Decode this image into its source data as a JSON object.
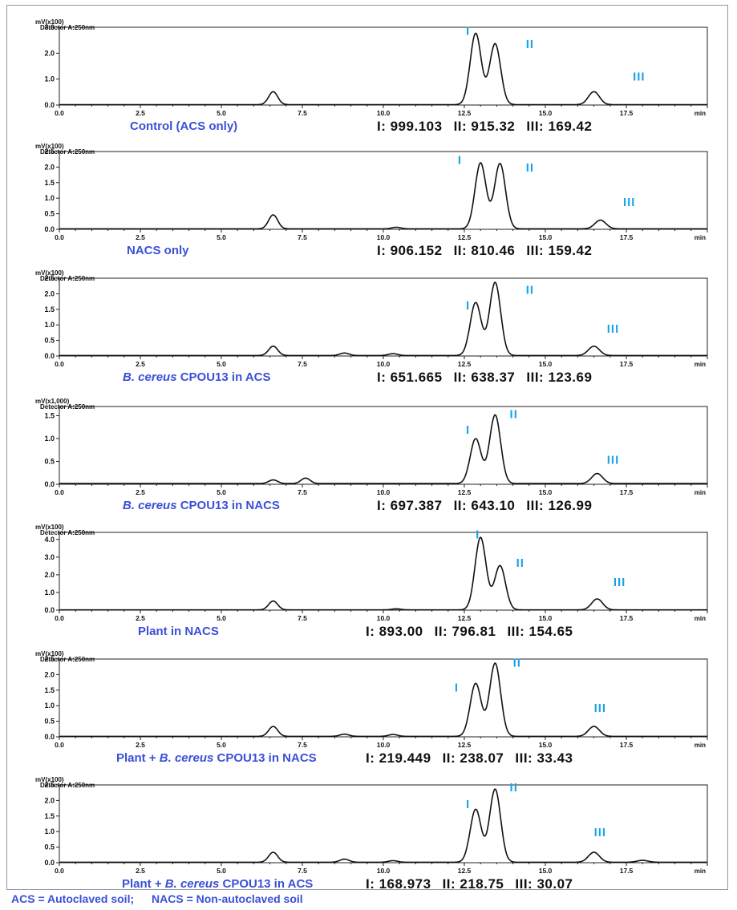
{
  "chart_data": [
    {
      "type": "line",
      "header_unit": "mV(x100)",
      "header_detector": "Detector A:250nm",
      "xlim": [
        0,
        20
      ],
      "ylim": [
        0,
        3.0
      ],
      "x_ticks": [
        "0.0",
        "2.5",
        "5.0",
        "7.5",
        "10.0",
        "12.5",
        "15.0",
        "17.5"
      ],
      "x_unit": "min",
      "y_ticks": [
        "0.0",
        "1.0",
        "2.0",
        "3.0"
      ],
      "caption": {
        "pre": "",
        "italic": "",
        "post": "Control (ACS only)"
      },
      "peaks": [
        {
          "t": 6.6,
          "h": 0.5
        },
        {
          "t": 12.85,
          "h": 2.75
        },
        {
          "t": 13.45,
          "h": 2.35
        },
        {
          "t": 16.5,
          "h": 0.5
        }
      ],
      "peak_labels": [
        {
          "label": "I",
          "x": 12.55,
          "y": 2.7
        },
        {
          "label": "II",
          "x": 14.4,
          "y": 2.2
        },
        {
          "label": "III",
          "x": 17.7,
          "y": 0.95
        }
      ],
      "areas": {
        "I": "I: 999.103",
        "II": "II: 915.32",
        "III": "III: 169.42"
      }
    },
    {
      "type": "line",
      "header_unit": "mV(x100)",
      "header_detector": "Detector A:250nm",
      "xlim": [
        0,
        20
      ],
      "ylim": [
        0,
        2.5
      ],
      "x_ticks": [
        "0.0",
        "2.5",
        "5.0",
        "7.5",
        "10.0",
        "12.5",
        "15.0",
        "17.5"
      ],
      "x_unit": "min",
      "y_ticks": [
        "0.0",
        "0.5",
        "1.0",
        "1.5",
        "2.0",
        "2.5"
      ],
      "caption": {
        "pre": "",
        "italic": "",
        "post": "NACS only"
      },
      "peaks": [
        {
          "t": 6.6,
          "h": 0.45
        },
        {
          "t": 10.4,
          "h": 0.05
        },
        {
          "t": 13.0,
          "h": 2.12
        },
        {
          "t": 13.6,
          "h": 2.1
        },
        {
          "t": 16.7,
          "h": 0.28
        }
      ],
      "peak_labels": [
        {
          "label": "I",
          "x": 12.3,
          "y": 2.1
        },
        {
          "label": "II",
          "x": 14.4,
          "y": 1.85
        },
        {
          "label": "III",
          "x": 17.4,
          "y": 0.75
        }
      ],
      "areas": {
        "I": "I: 906.152",
        "II": "II: 810.46",
        "III": "III: 159.42"
      }
    },
    {
      "type": "line",
      "header_unit": "mV(x100)",
      "header_detector": "Detector A:250nm",
      "xlim": [
        0,
        20
      ],
      "ylim": [
        0,
        2.5
      ],
      "x_ticks": [
        "0.0",
        "2.5",
        "5.0",
        "7.5",
        "10.0",
        "12.5",
        "15.0",
        "17.5"
      ],
      "x_unit": "min",
      "y_ticks": [
        "0.0",
        "0.5",
        "1.0",
        "1.5",
        "2.0",
        "2.5"
      ],
      "caption": {
        "pre": "",
        "italic": "B. cereus",
        "post": " CPOU13 in ACS"
      },
      "peaks": [
        {
          "t": 6.6,
          "h": 0.3
        },
        {
          "t": 8.8,
          "h": 0.08
        },
        {
          "t": 10.3,
          "h": 0.06
        },
        {
          "t": 12.85,
          "h": 1.7
        },
        {
          "t": 13.45,
          "h": 2.35
        },
        {
          "t": 16.5,
          "h": 0.3
        }
      ],
      "peak_labels": [
        {
          "label": "I",
          "x": 12.55,
          "y": 1.5
        },
        {
          "label": "II",
          "x": 14.4,
          "y": 2.0
        },
        {
          "label": "III",
          "x": 16.9,
          "y": 0.75
        }
      ],
      "areas": {
        "I": "I: 651.665",
        "II": "II: 638.37",
        "III": "III: 123.69"
      }
    },
    {
      "type": "line",
      "header_unit": "mV(x1,000)",
      "header_detector": "Detector A:250nm",
      "xlim": [
        0,
        20
      ],
      "ylim": [
        0,
        1.7
      ],
      "x_ticks": [
        "0.0",
        "2.5",
        "5.0",
        "7.5",
        "10.0",
        "12.5",
        "15.0",
        "17.5"
      ],
      "x_unit": "min",
      "y_ticks": [
        "0.0",
        "0.5",
        "1.0",
        "1.5"
      ],
      "caption": {
        "pre": "",
        "italic": "B. cereus",
        "post": " CPOU13 in NACS"
      },
      "peaks": [
        {
          "t": 6.6,
          "h": 0.08
        },
        {
          "t": 7.6,
          "h": 0.12
        },
        {
          "t": 12.85,
          "h": 0.98
        },
        {
          "t": 13.45,
          "h": 1.5
        },
        {
          "t": 16.6,
          "h": 0.22
        }
      ],
      "peak_labels": [
        {
          "label": "I",
          "x": 12.55,
          "y": 1.1
        },
        {
          "label": "II",
          "x": 13.9,
          "y": 1.45
        },
        {
          "label": "III",
          "x": 16.9,
          "y": 0.45
        }
      ],
      "areas": {
        "I": "I: 697.387",
        "II": "II: 643.10",
        "III": "III: 126.99"
      }
    },
    {
      "type": "line",
      "header_unit": "mV(x100)",
      "header_detector": "Detector A:250nm",
      "xlim": [
        0,
        20
      ],
      "ylim": [
        0,
        4.4
      ],
      "x_ticks": [
        "0.0",
        "2.5",
        "5.0",
        "7.5",
        "10.0",
        "12.5",
        "15.0",
        "17.5"
      ],
      "x_unit": "min",
      "y_ticks": [
        "0.0",
        "1.0",
        "2.0",
        "3.0",
        "4.0"
      ],
      "caption": {
        "pre": "",
        "italic": "",
        "post": "Plant in NACS"
      },
      "peaks": [
        {
          "t": 6.6,
          "h": 0.5
        },
        {
          "t": 10.4,
          "h": 0.06
        },
        {
          "t": 13.0,
          "h": 4.1
        },
        {
          "t": 13.6,
          "h": 2.5
        },
        {
          "t": 16.6,
          "h": 0.62
        }
      ],
      "peak_labels": [
        {
          "label": "I",
          "x": 12.85,
          "y": 4.05
        },
        {
          "label": "II",
          "x": 14.1,
          "y": 2.45
        },
        {
          "label": "III",
          "x": 17.1,
          "y": 1.35
        }
      ],
      "areas": {
        "I": "I: 893.00",
        "II": "II: 796.81",
        "III": "III: 154.65"
      }
    },
    {
      "type": "line",
      "header_unit": "mV(x100)",
      "header_detector": "Detector A:250nm",
      "xlim": [
        0,
        20
      ],
      "ylim": [
        0,
        2.5
      ],
      "x_ticks": [
        "0.0",
        "2.5",
        "5.0",
        "7.5",
        "10.0",
        "12.5",
        "15.0",
        "17.5"
      ],
      "x_unit": "min",
      "y_ticks": [
        "0.0",
        "0.5",
        "1.0",
        "1.5",
        "2.0",
        "2.5"
      ],
      "caption": {
        "pre": "Plant + ",
        "italic": "B. cereus",
        "post": " CPOU13 in NACS"
      },
      "peaks": [
        {
          "t": 6.6,
          "h": 0.32
        },
        {
          "t": 8.8,
          "h": 0.07
        },
        {
          "t": 10.3,
          "h": 0.06
        },
        {
          "t": 12.85,
          "h": 1.7
        },
        {
          "t": 13.45,
          "h": 2.35
        },
        {
          "t": 16.5,
          "h": 0.32
        }
      ],
      "peak_labels": [
        {
          "label": "I",
          "x": 12.2,
          "y": 1.45
        },
        {
          "label": "II",
          "x": 14.0,
          "y": 2.25
        },
        {
          "label": "III",
          "x": 16.5,
          "y": 0.8
        }
      ],
      "areas": {
        "I": "I: 219.449",
        "II": "II: 238.07",
        "III": "III: 33.43"
      }
    },
    {
      "type": "line",
      "header_unit": "mV(x100)",
      "header_detector": "Detector A:250nm",
      "xlim": [
        0,
        20
      ],
      "ylim": [
        0,
        2.5
      ],
      "x_ticks": [
        "0.0",
        "2.5",
        "5.0",
        "7.5",
        "10.0",
        "12.5",
        "15.0",
        "17.5"
      ],
      "x_unit": "min",
      "y_ticks": [
        "0.0",
        "0.5",
        "1.0",
        "1.5",
        "2.0",
        "2.5"
      ],
      "caption": {
        "pre": "Plant + ",
        "italic": "B. cereus",
        "post": " CPOU13 in ACS"
      },
      "peaks": [
        {
          "t": 6.6,
          "h": 0.32
        },
        {
          "t": 8.8,
          "h": 0.1
        },
        {
          "t": 10.3,
          "h": 0.05
        },
        {
          "t": 12.85,
          "h": 1.7
        },
        {
          "t": 13.45,
          "h": 2.35
        },
        {
          "t": 16.5,
          "h": 0.32
        },
        {
          "t": 18.0,
          "h": 0.06
        }
      ],
      "peak_labels": [
        {
          "label": "I",
          "x": 12.55,
          "y": 1.75
        },
        {
          "label": "II",
          "x": 13.9,
          "y": 2.3
        },
        {
          "label": "III",
          "x": 16.5,
          "y": 0.85
        }
      ],
      "areas": {
        "I": "I: 168.973",
        "II": "II: 218.75",
        "III": "III: 30.07"
      }
    }
  ],
  "footnote": {
    "acs": "ACS = Autoclaved soil;",
    "nacs": "NACS = Non-autoclaved soil"
  },
  "colors": {
    "trace": "#111111",
    "peak_label": "#1aa3e8",
    "caption": "#3b4fd8",
    "frame": "#8e96a6"
  }
}
